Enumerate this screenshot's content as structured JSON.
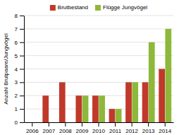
{
  "chart_data": {
    "type": "bar",
    "ylabel": "Anzahl Brutpaare/Jungvögel",
    "categories": [
      "2006",
      "2007",
      "2008",
      "2009",
      "2010",
      "2011",
      "2012",
      "2013",
      "2014"
    ],
    "series": [
      {
        "name": "Brutbestand",
        "color": "#c0392b",
        "values": [
          null,
          2,
          3,
          2,
          2,
          1,
          3,
          3,
          4
        ]
      },
      {
        "name": "Flügge Jungvögel",
        "color": "#8db83a",
        "values": [
          null,
          0,
          0,
          2,
          2,
          1,
          3,
          6,
          7
        ]
      }
    ],
    "ylim": [
      0,
      8
    ],
    "yticks": [
      0,
      1,
      2,
      3,
      4,
      5,
      6,
      7,
      8
    ],
    "grid": true,
    "legend": "top"
  }
}
